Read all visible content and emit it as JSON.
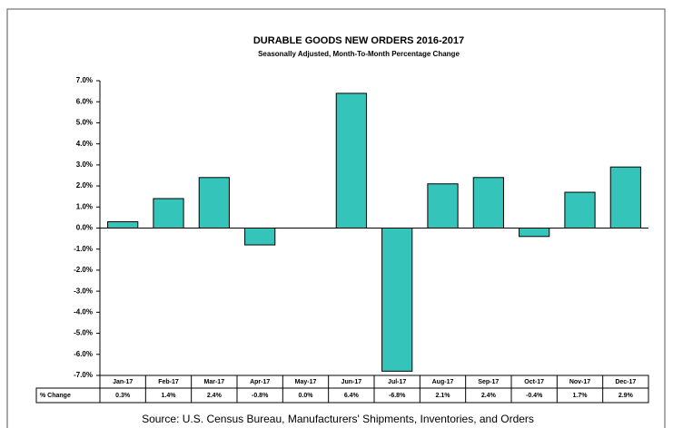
{
  "chart_data": {
    "type": "bar",
    "title": "DURABLE GOODS NEW ORDERS 2016-2017",
    "subtitle": "Seasonally Adjusted,  Month-To-Month  Percentage  Change",
    "categories": [
      "Jan-17",
      "Feb-17",
      "Mar-17",
      "Apr-17",
      "May-17",
      "Jun-17",
      "Jul-17",
      "Aug-17",
      "Sep-17",
      "Oct-17",
      "Nov-17",
      "Dec-17"
    ],
    "values": [
      0.3,
      1.4,
      2.4,
      -0.8,
      0.0,
      6.4,
      -6.8,
      2.1,
      2.4,
      -0.4,
      1.7,
      2.9
    ],
    "value_labels": [
      "0.3%",
      "1.4%",
      "2.4%",
      "-0.8%",
      "0.0%",
      "6.4%",
      "-6.8%",
      "2.1%",
      "2.4%",
      "-0.4%",
      "1.7%",
      "2.9%"
    ],
    "row_label": "% Change",
    "color": "#35c4b9",
    "ylim": [
      -7,
      7
    ],
    "yticks": [
      {
        "value": -7,
        "label": "-7.0%"
      },
      {
        "value": -6,
        "label": "-6.0%"
      },
      {
        "value": -5,
        "label": "-5.0%"
      },
      {
        "value": -4,
        "label": "-4.0%"
      },
      {
        "value": -3,
        "label": "-3.0%"
      },
      {
        "value": -2,
        "label": "-2.0%"
      },
      {
        "value": -1,
        "label": "-1.0%"
      },
      {
        "value": 0,
        "label": "0.0%"
      },
      {
        "value": 1,
        "label": "1.0%"
      },
      {
        "value": 2,
        "label": "2.0%"
      },
      {
        "value": 3,
        "label": "3.0%"
      },
      {
        "value": 4,
        "label": "4.0%"
      },
      {
        "value": 5,
        "label": "5.0%"
      },
      {
        "value": 6,
        "label": "6.0%"
      },
      {
        "value": 7,
        "label": "7.0%"
      }
    ],
    "grid": false,
    "source": "Source: U.S. Census Bureau, Manufacturers' Shipments, Inventories, and Orders"
  }
}
